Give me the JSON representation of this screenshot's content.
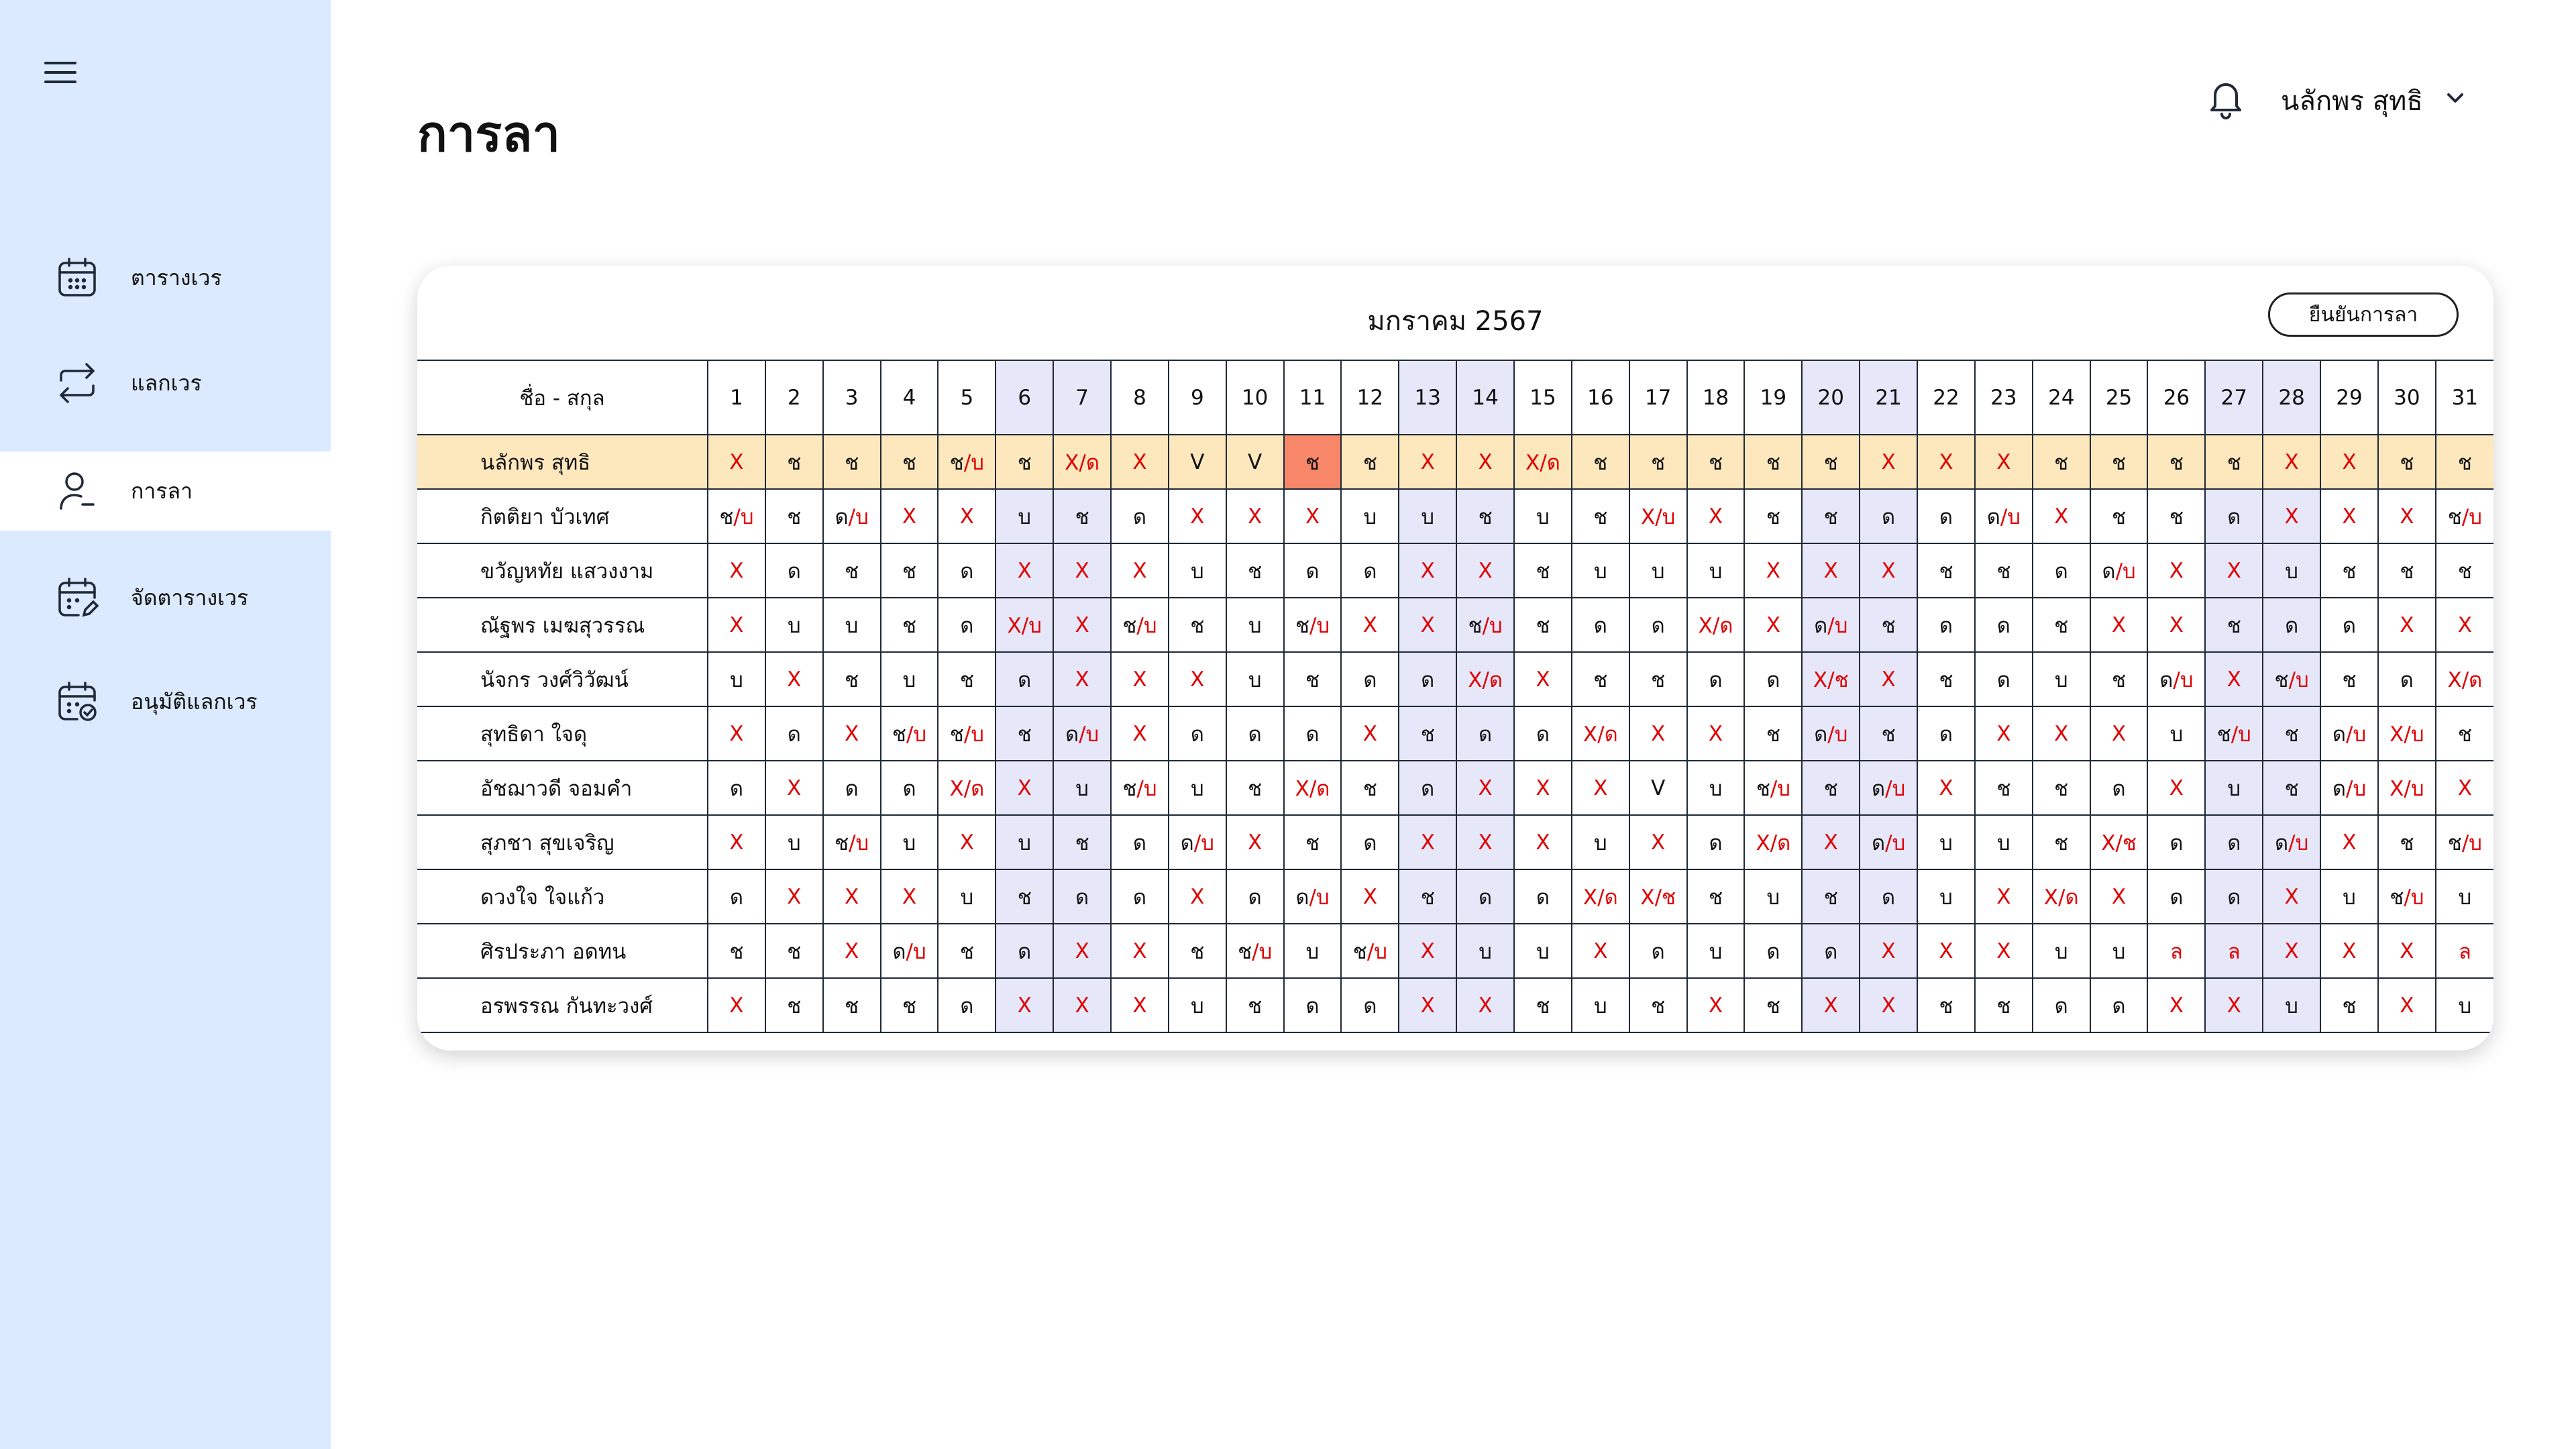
{
  "sidebar": {
    "items": [
      {
        "label": "ตารางเวร",
        "icon": "calendar-icon"
      },
      {
        "label": "แลกเวร",
        "icon": "swap-icon"
      },
      {
        "label": "การลา",
        "icon": "user-minus-icon",
        "active": true
      },
      {
        "label": "จัดตารางเวร",
        "icon": "calendar-edit-icon"
      },
      {
        "label": "อนุมัติแลกเวร",
        "icon": "calendar-check-icon"
      }
    ]
  },
  "header": {
    "title": "การลา",
    "user_name": "นลักพร สุทธิ"
  },
  "calendar": {
    "month_label": "มกราคม  2567",
    "confirm_label": "ยืนยันการลา",
    "name_header": "ชื่อ - สกุล",
    "days": [
      "1",
      "2",
      "3",
      "4",
      "5",
      "6",
      "7",
      "8",
      "9",
      "10",
      "11",
      "12",
      "13",
      "14",
      "15",
      "16",
      "17",
      "18",
      "19",
      "20",
      "21",
      "22",
      "23",
      "24",
      "25",
      "26",
      "27",
      "28",
      "29",
      "30",
      "31"
    ],
    "weekend_days": [
      6,
      7,
      13,
      14,
      20,
      21,
      27,
      28
    ],
    "highlight": {
      "row": 0,
      "day": 11
    },
    "rows": [
      {
        "name": "นลักพร สุทธิ",
        "cells": [
          "X",
          "ช",
          "ช",
          "ช",
          "ช/บ",
          "ช",
          "X/ด",
          "X",
          "V",
          "V",
          "ช",
          "ช",
          "X",
          "X",
          "X/ด",
          "ช",
          "ช",
          "ช",
          "ช",
          "ช",
          "X",
          "X",
          "X",
          "ช",
          "ช",
          "ช",
          "ช",
          "X",
          "X",
          "ช",
          "ช"
        ]
      },
      {
        "name": "กิตติยา บัวเทศ",
        "cells": [
          "ช/บ",
          "ช",
          "ด/บ",
          "X",
          "X",
          "บ",
          "ช",
          "ด",
          "X",
          "X",
          "X",
          "บ",
          "บ",
          "ช",
          "บ",
          "ช",
          "X/บ",
          "X",
          "ช",
          "ช",
          "ด",
          "ด",
          "ด/บ",
          "X",
          "ช",
          "ช",
          "ด",
          "X",
          "X",
          "X",
          "ช/บ"
        ]
      },
      {
        "name": "ขวัญหทัย แสวงงาม",
        "cells": [
          "X",
          "ด",
          "ช",
          "ช",
          "ด",
          "X",
          "X",
          "X",
          "บ",
          "ช",
          "ด",
          "ด",
          "X",
          "X",
          "ช",
          "บ",
          "บ",
          "บ",
          "X",
          "X",
          "X",
          "ช",
          "ช",
          "ด",
          "ด/บ",
          "X",
          "X",
          "บ",
          "ช",
          "ช",
          "ช"
        ]
      },
      {
        "name": "ณัฐพร เมฆสุวรรณ",
        "cells": [
          "X",
          "บ",
          "บ",
          "ช",
          "ด",
          "X/บ",
          "X",
          "ช/บ",
          "ช",
          "บ",
          "ช/บ",
          "X",
          "X",
          "ช/บ",
          "ช",
          "ด",
          "ด",
          "X/ด",
          "X",
          "ด/บ",
          "ช",
          "ด",
          "ด",
          "ช",
          "X",
          "X",
          "ช",
          "ด",
          "ด",
          "X",
          "X"
        ]
      },
      {
        "name": "นัจกร วงศ์วิวัฒน์",
        "cells": [
          "บ",
          "X",
          "ช",
          "บ",
          "ช",
          "ด",
          "X",
          "X",
          "X",
          "บ",
          "ช",
          "ด",
          "ด",
          "X/ด",
          "X",
          "ช",
          "ช",
          "ด",
          "ด",
          "X/ช",
          "X",
          "ช",
          "ด",
          "บ",
          "ช",
          "ด/บ",
          "X",
          "ช/บ",
          "ช",
          "ด",
          "X/ด"
        ]
      },
      {
        "name": "สุทธิดา ใจดุ",
        "cells": [
          "X",
          "ด",
          "X",
          "ช/บ",
          "ช/บ",
          "ช",
          "ด/บ",
          "X",
          "ด",
          "ด",
          "ด",
          "X",
          "ช",
          "ด",
          "ด",
          "X/ด",
          "X",
          "X",
          "ช",
          "ด/บ",
          "ช",
          "ด",
          "X",
          "X",
          "X",
          "บ",
          "ช/บ",
          "ช",
          "ด/บ",
          "X/บ",
          "ช"
        ]
      },
      {
        "name": "อัชฌาวดี จอมคำ",
        "cells": [
          "ด",
          "X",
          "ด",
          "ด",
          "X/ด",
          "X",
          "บ",
          "ช/บ",
          "บ",
          "ช",
          "X/ด",
          "ช",
          "ด",
          "X",
          "X",
          "X",
          "V",
          "บ",
          "ช/บ",
          "ช",
          "ด/บ",
          "X",
          "ช",
          "ช",
          "ด",
          "X",
          "บ",
          "ช",
          "ด/บ",
          "X/บ",
          "X"
        ]
      },
      {
        "name": "สุภชา สุขเจริญ",
        "cells": [
          "X",
          "บ",
          "ช/บ",
          "บ",
          "X",
          "บ",
          "ช",
          "ด",
          "ด/บ",
          "X",
          "ช",
          "ด",
          "X",
          "X",
          "X",
          "บ",
          "X",
          "ด",
          "X/ด",
          "X",
          "ด/บ",
          "บ",
          "บ",
          "ช",
          "X/ช",
          "ด",
          "ด",
          "ด/บ",
          "X",
          "ช",
          "ช/บ"
        ]
      },
      {
        "name": "ดวงใจ ใจแก้ว",
        "cells": [
          "ด",
          "X",
          "X",
          "X",
          "บ",
          "ช",
          "ด",
          "ด",
          "X",
          "ด",
          "ด/บ",
          "X",
          "ช",
          "ด",
          "ด",
          "X/ด",
          "X/ช",
          "ช",
          "บ",
          "ช",
          "ด",
          "บ",
          "X",
          "X/ด",
          "X",
          "ด",
          "ด",
          "X",
          "บ",
          "ช/บ",
          "บ"
        ]
      },
      {
        "name": "ศิรประภา อดทน",
        "cells": [
          "ช",
          "ช",
          "X",
          "ด/บ",
          "ช",
          "ด",
          "X",
          "X",
          "ช",
          "ช/บ",
          "บ",
          "ช/บ",
          "X",
          "บ",
          "บ",
          "X",
          "ด",
          "บ",
          "ด",
          "ด",
          "X",
          "X",
          "X",
          "บ",
          "บ",
          "ล",
          "ล",
          "X",
          "X",
          "X",
          "ล"
        ]
      },
      {
        "name": "อรพรรณ กันทะวงศ์",
        "cells": [
          "X",
          "ช",
          "ช",
          "ช",
          "ด",
          "X",
          "X",
          "X",
          "บ",
          "ช",
          "ด",
          "ด",
          "X",
          "X",
          "ช",
          "บ",
          "ช",
          "X",
          "ช",
          "X",
          "X",
          "ช",
          "ช",
          "ด",
          "ด",
          "X",
          "X",
          "บ",
          "ช",
          "X",
          "บ"
        ]
      }
    ]
  }
}
